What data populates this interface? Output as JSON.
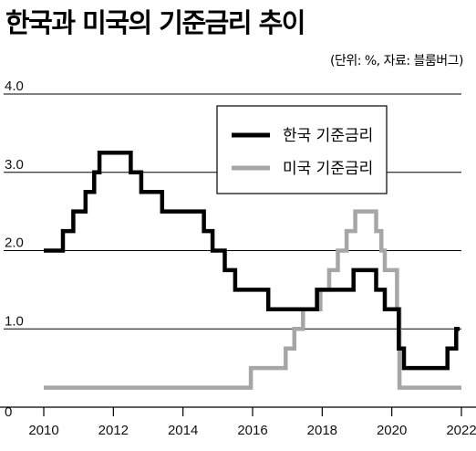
{
  "title": "한국과 미국의 기준금리 추이",
  "subtitle": "(단위: %, 자료: 블룸버그)",
  "chart_data": {
    "type": "line",
    "title": "한국과 미국의 기준금리 추이",
    "subtitle": "(단위: %, 자료: 블룸버그)",
    "xlabel": "",
    "ylabel": "",
    "xlim": [
      2010,
      2022
    ],
    "ylim": [
      0,
      4.0
    ],
    "x_ticks": [
      "2010",
      "2012",
      "2014",
      "2016",
      "2018",
      "2020",
      "2022"
    ],
    "y_ticks": [
      "0",
      "1.0",
      "2.0",
      "3.0",
      "4.0"
    ],
    "grid": "horizontal",
    "legend_position": "top-right",
    "step": true,
    "series": [
      {
        "name": "한국 기준금리",
        "color": "#000000",
        "points": [
          [
            2010.0,
            2.0
          ],
          [
            2010.55,
            2.0
          ],
          [
            2010.55,
            2.25
          ],
          [
            2010.85,
            2.25
          ],
          [
            2010.85,
            2.5
          ],
          [
            2011.2,
            2.5
          ],
          [
            2011.2,
            2.75
          ],
          [
            2011.45,
            2.75
          ],
          [
            2011.45,
            3.0
          ],
          [
            2011.6,
            3.0
          ],
          [
            2011.6,
            3.25
          ],
          [
            2012.5,
            3.25
          ],
          [
            2012.5,
            3.0
          ],
          [
            2012.8,
            3.0
          ],
          [
            2012.8,
            2.75
          ],
          [
            2013.4,
            2.75
          ],
          [
            2013.4,
            2.5
          ],
          [
            2014.6,
            2.5
          ],
          [
            2014.6,
            2.25
          ],
          [
            2014.85,
            2.25
          ],
          [
            2014.85,
            2.0
          ],
          [
            2015.2,
            2.0
          ],
          [
            2015.2,
            1.75
          ],
          [
            2015.5,
            1.75
          ],
          [
            2015.5,
            1.5
          ],
          [
            2016.45,
            1.5
          ],
          [
            2016.45,
            1.25
          ],
          [
            2017.85,
            1.25
          ],
          [
            2017.85,
            1.5
          ],
          [
            2018.9,
            1.5
          ],
          [
            2018.9,
            1.75
          ],
          [
            2019.55,
            1.75
          ],
          [
            2019.55,
            1.5
          ],
          [
            2019.8,
            1.5
          ],
          [
            2019.8,
            1.25
          ],
          [
            2020.2,
            1.25
          ],
          [
            2020.2,
            0.75
          ],
          [
            2020.35,
            0.75
          ],
          [
            2020.35,
            0.5
          ],
          [
            2021.6,
            0.5
          ],
          [
            2021.6,
            0.75
          ],
          [
            2021.85,
            0.75
          ],
          [
            2021.85,
            1.0
          ],
          [
            2021.95,
            1.0
          ]
        ]
      },
      {
        "name": "미국 기준금리",
        "color": "#a6a6a6",
        "points": [
          [
            2010.0,
            0.25
          ],
          [
            2015.95,
            0.25
          ],
          [
            2015.95,
            0.5
          ],
          [
            2016.95,
            0.5
          ],
          [
            2016.95,
            0.75
          ],
          [
            2017.2,
            0.75
          ],
          [
            2017.2,
            1.0
          ],
          [
            2017.45,
            1.0
          ],
          [
            2017.45,
            1.25
          ],
          [
            2017.95,
            1.25
          ],
          [
            2017.95,
            1.5
          ],
          [
            2018.2,
            1.5
          ],
          [
            2018.2,
            1.75
          ],
          [
            2018.45,
            1.75
          ],
          [
            2018.45,
            2.0
          ],
          [
            2018.7,
            2.0
          ],
          [
            2018.7,
            2.25
          ],
          [
            2018.95,
            2.25
          ],
          [
            2018.95,
            2.5
          ],
          [
            2019.55,
            2.5
          ],
          [
            2019.55,
            2.25
          ],
          [
            2019.7,
            2.25
          ],
          [
            2019.7,
            2.0
          ],
          [
            2019.8,
            2.0
          ],
          [
            2019.8,
            1.75
          ],
          [
            2020.15,
            1.75
          ],
          [
            2020.15,
            1.25
          ],
          [
            2020.22,
            1.25
          ],
          [
            2020.22,
            0.25
          ],
          [
            2022.0,
            0.25
          ]
        ]
      }
    ]
  }
}
